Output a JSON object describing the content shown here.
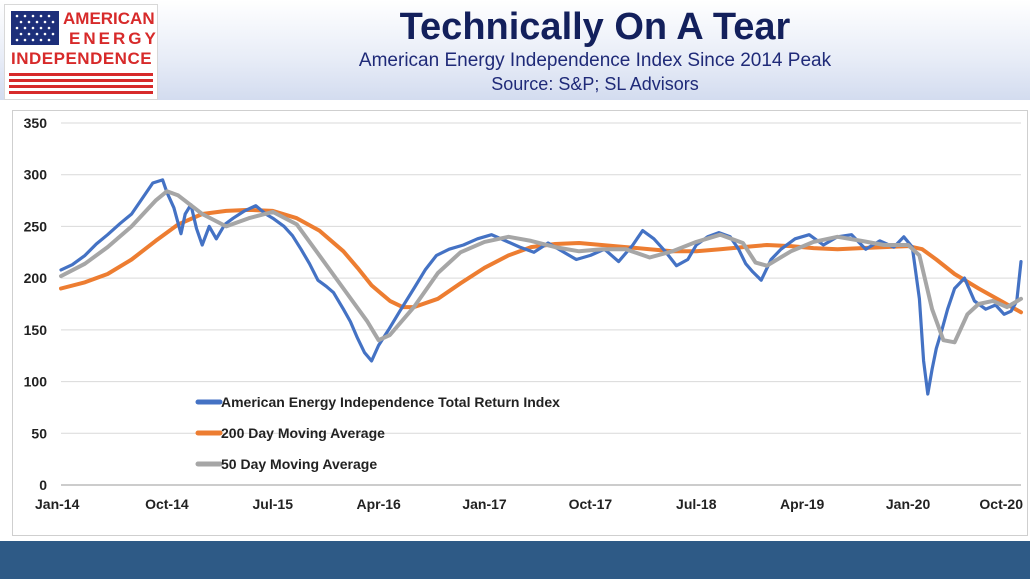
{
  "header": {
    "title": "Technically On A Tear",
    "subtitle": "American Energy Independence Index Since 2014 Peak",
    "source": "Source: S&P; SL Advisors"
  },
  "logo": {
    "line1": "AMERICAN",
    "line2": "ENERGY",
    "line3": "INDEPENDENCE",
    "text_color": "#d72a2a",
    "flag_blue": "#1d2f7a"
  },
  "chart_data": {
    "type": "line",
    "title": "",
    "xlabel": "",
    "ylabel": "",
    "ylim": [
      0,
      350
    ],
    "yticks": [
      0,
      50,
      100,
      150,
      200,
      250,
      300,
      350
    ],
    "x_tick_labels": [
      "Jan-14",
      "Oct-14",
      "Jul-15",
      "Apr-16",
      "Jan-17",
      "Oct-17",
      "Jul-18",
      "Apr-19",
      "Jan-20",
      "Oct-20"
    ],
    "x_tick_positions": [
      2014.0,
      2014.75,
      2015.5,
      2016.25,
      2017.0,
      2017.75,
      2018.5,
      2019.25,
      2020.0,
      2020.75
    ],
    "xlim": [
      2014.0,
      2020.8
    ],
    "grid": "horizontal",
    "legend_position": "lower-left",
    "series": [
      {
        "name": "American Energy Independence Total Return Index",
        "color": "#4472c4",
        "x": [
          2014.0,
          2014.08,
          2014.17,
          2014.25,
          2014.33,
          2014.42,
          2014.5,
          2014.58,
          2014.65,
          2014.72,
          2014.75,
          2014.8,
          2014.85,
          2014.88,
          2014.92,
          2014.96,
          2015.0,
          2015.05,
          2015.1,
          2015.16,
          2015.22,
          2015.3,
          2015.38,
          2015.45,
          2015.5,
          2015.58,
          2015.64,
          2015.7,
          2015.76,
          2015.82,
          2015.88,
          2015.93,
          2016.0,
          2016.05,
          2016.1,
          2016.15,
          2016.2,
          2016.25,
          2016.32,
          2016.4,
          2016.5,
          2016.58,
          2016.66,
          2016.75,
          2016.85,
          2016.95,
          2017.05,
          2017.15,
          2017.25,
          2017.35,
          2017.45,
          2017.55,
          2017.65,
          2017.75,
          2017.85,
          2017.95,
          2018.05,
          2018.12,
          2018.2,
          2018.28,
          2018.36,
          2018.44,
          2018.5,
          2018.58,
          2018.66,
          2018.74,
          2018.8,
          2018.85,
          2018.9,
          2018.96,
          2019.03,
          2019.1,
          2019.2,
          2019.3,
          2019.4,
          2019.5,
          2019.6,
          2019.7,
          2019.8,
          2019.9,
          2019.97,
          2020.03,
          2020.08,
          2020.11,
          2020.14,
          2020.17,
          2020.2,
          2020.24,
          2020.28,
          2020.33,
          2020.4,
          2020.47,
          2020.55,
          2020.62,
          2020.68,
          2020.73,
          2020.77,
          2020.8
        ],
        "y": [
          208,
          213,
          222,
          233,
          242,
          253,
          262,
          278,
          292,
          295,
          283,
          268,
          243,
          262,
          271,
          248,
          232,
          250,
          238,
          252,
          258,
          265,
          270,
          262,
          258,
          250,
          241,
          228,
          214,
          198,
          192,
          186,
          170,
          158,
          142,
          128,
          120,
          135,
          150,
          168,
          190,
          208,
          222,
          228,
          232,
          238,
          242,
          236,
          230,
          225,
          234,
          226,
          218,
          222,
          228,
          216,
          232,
          246,
          238,
          226,
          212,
          218,
          232,
          240,
          244,
          240,
          228,
          214,
          206,
          198,
          218,
          228,
          238,
          242,
          232,
          240,
          242,
          228,
          236,
          230,
          240,
          230,
          180,
          120,
          88,
          112,
          132,
          150,
          170,
          190,
          200,
          178,
          170,
          174,
          165,
          168,
          178,
          216
        ]
      },
      {
        "name": "200 Day Moving Average",
        "color": "#ed7d31",
        "x": [
          2014.0,
          2014.17,
          2014.33,
          2014.5,
          2014.67,
          2014.83,
          2015.0,
          2015.17,
          2015.33,
          2015.5,
          2015.67,
          2015.83,
          2016.0,
          2016.1,
          2016.2,
          2016.33,
          2016.42,
          2016.5,
          2016.67,
          2016.83,
          2017.0,
          2017.17,
          2017.33,
          2017.5,
          2017.67,
          2017.83,
          2018.0,
          2018.17,
          2018.33,
          2018.5,
          2018.67,
          2018.83,
          2019.0,
          2019.17,
          2019.33,
          2019.5,
          2019.67,
          2019.83,
          2020.0,
          2020.1,
          2020.2,
          2020.33,
          2020.5,
          2020.67,
          2020.8
        ],
        "y": [
          190,
          196,
          204,
          218,
          236,
          252,
          262,
          265,
          266,
          265,
          258,
          246,
          226,
          210,
          193,
          178,
          172,
          172,
          180,
          195,
          210,
          222,
          230,
          233,
          234,
          232,
          230,
          228,
          226,
          226,
          228,
          230,
          232,
          231,
          229,
          228,
          229,
          230,
          231,
          228,
          218,
          204,
          190,
          177,
          167
        ]
      },
      {
        "name": "50 Day Moving Average",
        "color": "#a6a6a6",
        "x": [
          2014.0,
          2014.17,
          2014.33,
          2014.5,
          2014.67,
          2014.75,
          2014.83,
          2015.0,
          2015.17,
          2015.33,
          2015.5,
          2015.67,
          2015.83,
          2016.0,
          2016.17,
          2016.25,
          2016.33,
          2016.5,
          2016.67,
          2016.83,
          2017.0,
          2017.17,
          2017.33,
          2017.5,
          2017.67,
          2017.83,
          2018.0,
          2018.17,
          2018.33,
          2018.5,
          2018.67,
          2018.83,
          2018.92,
          2019.0,
          2019.17,
          2019.33,
          2019.5,
          2019.67,
          2019.83,
          2020.0,
          2020.08,
          2020.17,
          2020.25,
          2020.33,
          2020.42,
          2020.5,
          2020.6,
          2020.7,
          2020.8
        ],
        "y": [
          202,
          214,
          230,
          250,
          275,
          284,
          280,
          262,
          250,
          258,
          264,
          252,
          222,
          190,
          158,
          140,
          145,
          172,
          205,
          225,
          235,
          240,
          236,
          230,
          226,
          228,
          228,
          220,
          226,
          235,
          242,
          234,
          215,
          212,
          226,
          235,
          240,
          236,
          232,
          232,
          222,
          170,
          140,
          138,
          165,
          175,
          178,
          172,
          180
        ]
      }
    ]
  }
}
